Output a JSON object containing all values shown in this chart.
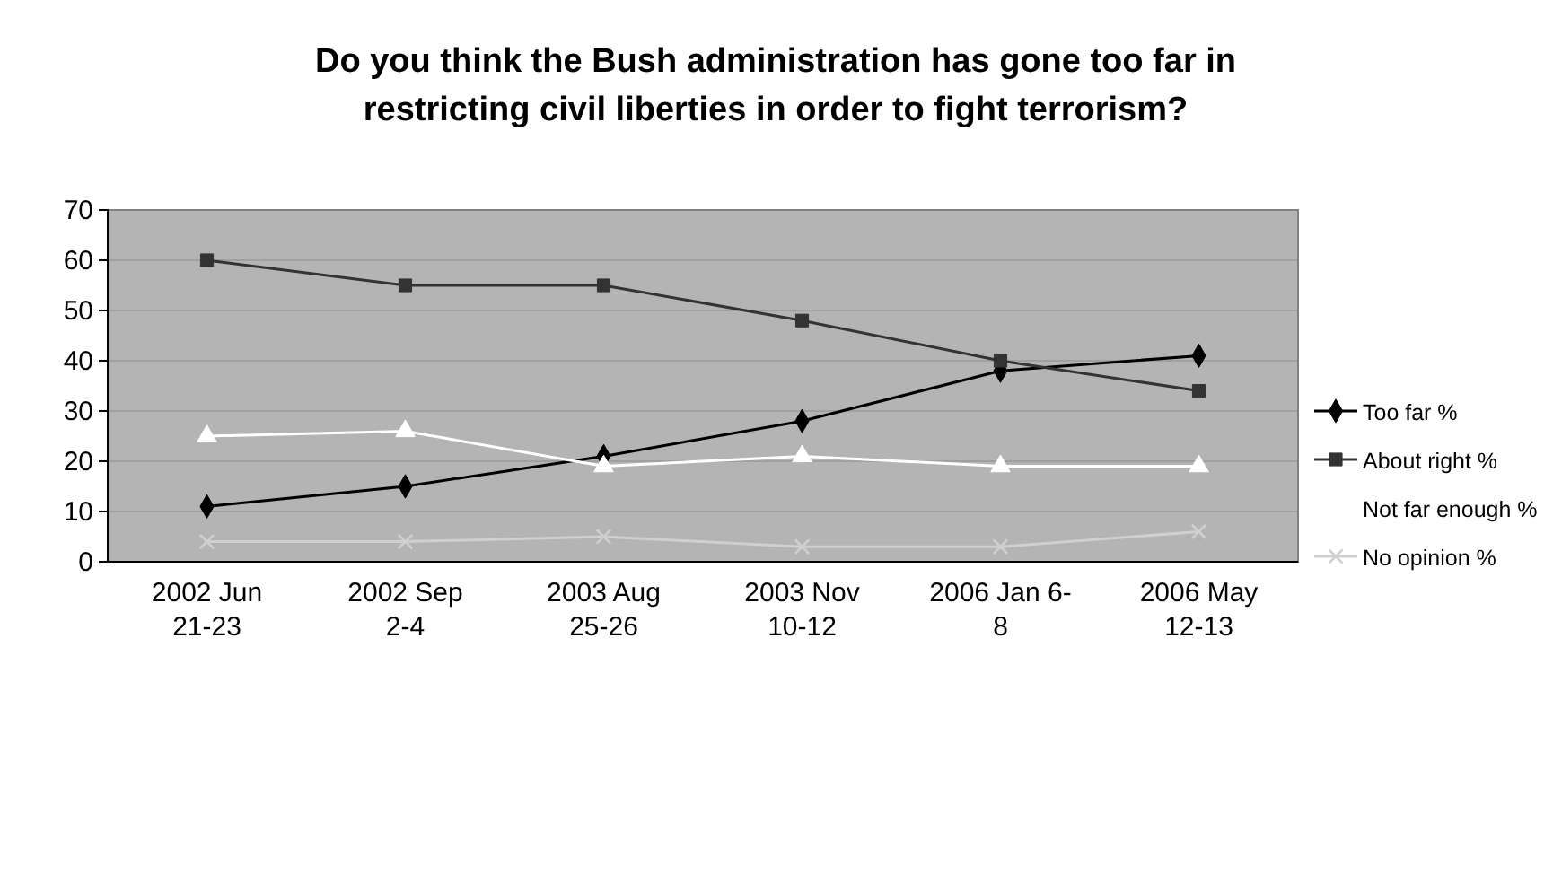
{
  "chart_data": {
    "type": "line",
    "title": "Do you think the Bush administration has gone too far in restricting civil liberties in order to fight terrorism?",
    "categories": [
      "2002 Jun\n21-23",
      "2002 Sep\n2-4",
      "2003 Aug\n25-26",
      "2003 Nov\n10-12",
      "2006 Jan 6-\n8",
      "2006 May\n12-13"
    ],
    "series": [
      {
        "name": "Too far %",
        "color": "#000000",
        "marker": "diamond",
        "values": [
          11,
          15,
          21,
          28,
          38,
          41
        ]
      },
      {
        "name": "About right %",
        "color": "#333333",
        "marker": "square",
        "values": [
          60,
          55,
          55,
          48,
          40,
          34
        ]
      },
      {
        "name": "Not far enough %",
        "color": "#ffffff",
        "marker": "triangle",
        "values": [
          25,
          26,
          19,
          21,
          19,
          19
        ]
      },
      {
        "name": "No opinion %",
        "color": "#d0d0d0",
        "marker": "cross",
        "values": [
          4,
          4,
          5,
          3,
          3,
          6
        ]
      }
    ],
    "ylim": [
      0,
      70
    ],
    "yticks": [
      0,
      10,
      20,
      30,
      40,
      50,
      60,
      70
    ],
    "grid": "y",
    "legend": "right"
  }
}
